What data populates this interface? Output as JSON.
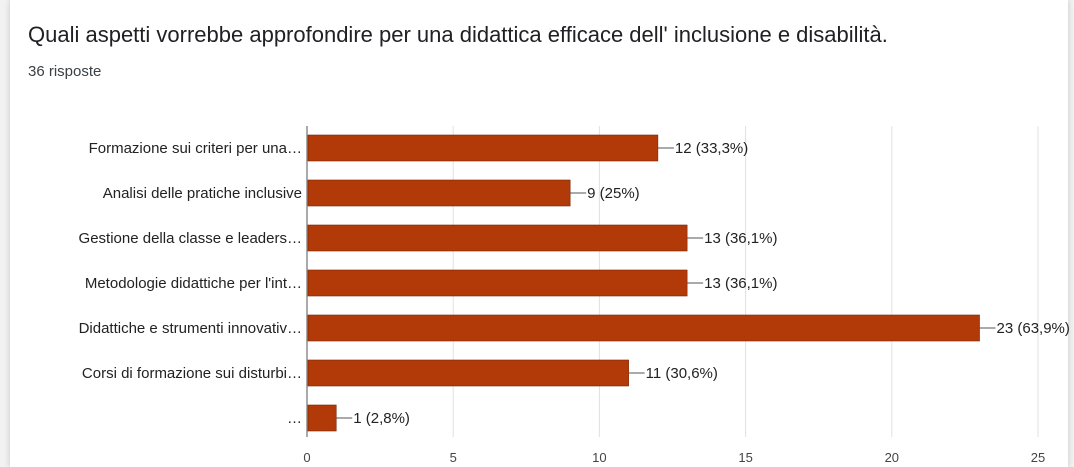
{
  "form": {
    "question": "Quali aspetti vorrebbe approfondire per una didattica efficace dell' inclusione e disabilità.",
    "responses_label": "36 risposte"
  },
  "colors": {
    "bar": "#b23a08",
    "grid": "#e0e0e0",
    "axis": "#555555"
  },
  "chart_data": {
    "type": "bar",
    "orientation": "horizontal",
    "categories": [
      "Formazione sui criteri per una…",
      "Analisi delle pratiche inclusive",
      "Gestione della classe e leaders…",
      "Metodologie didattiche per l'int…",
      "Didattiche e strumenti innovativ…",
      "Corsi di formazione sui disturbi…",
      "…"
    ],
    "values": [
      12,
      9,
      13,
      13,
      23,
      11,
      1
    ],
    "data_labels": [
      "12 (33,3%)",
      "9 (25%)",
      "13 (36,1%)",
      "13 (36,1%)",
      "23 (63,9%)",
      "11 (30,6%)",
      "1 (2,8%)"
    ],
    "xlim": [
      0,
      25
    ],
    "xticks": [
      0,
      5,
      10,
      15,
      20,
      25
    ],
    "grid": true
  }
}
